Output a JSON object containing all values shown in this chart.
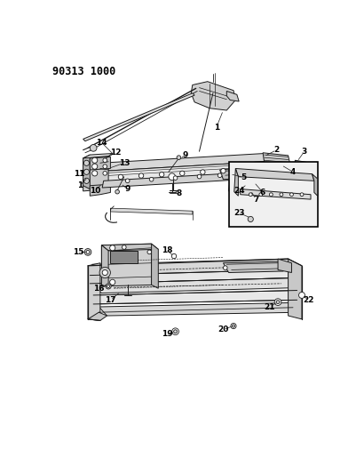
{
  "title": "90313 1000",
  "bg_color": "#ffffff",
  "fig_width": 4.02,
  "fig_height": 5.33,
  "dpi": 100,
  "line_color": "#1a1a1a",
  "fill_light": "#e8e8e8",
  "fill_mid": "#cccccc",
  "fill_dark": "#aaaaaa",
  "label_fontsize": 6.5
}
